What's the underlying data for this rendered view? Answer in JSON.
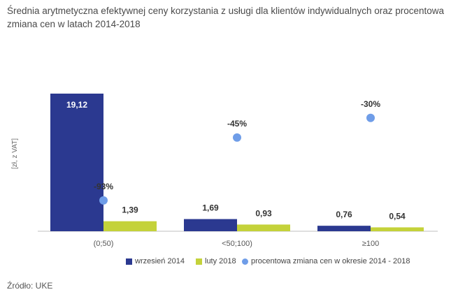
{
  "title": "Średnia arytmetyczna efektywnej ceny korzystania z usługi dla klientów indywidualnych oraz procentowa zmiana cen w latach 2014-2018",
  "source": "Źródło: UKE",
  "colors": {
    "series_2014": "#2b3990",
    "series_2018": "#c4d23a",
    "change_points": "#6f9de8",
    "axis": "#bfbfbf"
  },
  "chart_data": {
    "type": "bar",
    "categories": [
      "(0;50)",
      "<50;100)",
      "≥100"
    ],
    "ylabel": "[zł, z VAT]",
    "series": [
      {
        "name": "wrzesień 2014",
        "values": [
          19.12,
          1.69,
          0.76
        ],
        "labels": [
          "19,12",
          "1,69",
          "0,76"
        ]
      },
      {
        "name": "luty 2018",
        "values": [
          1.39,
          0.93,
          0.54
        ],
        "labels": [
          "1,39",
          "0,93",
          "0,54"
        ]
      }
    ],
    "change_series": {
      "name": "procentowa zmiana cen w okresie 2014 - 2018",
      "values": [
        -93,
        -45,
        -30
      ],
      "labels": [
        "-93%",
        "-45%",
        "-30%"
      ]
    },
    "ylim": [
      0,
      20
    ],
    "legend": "bottom",
    "grid": false
  }
}
